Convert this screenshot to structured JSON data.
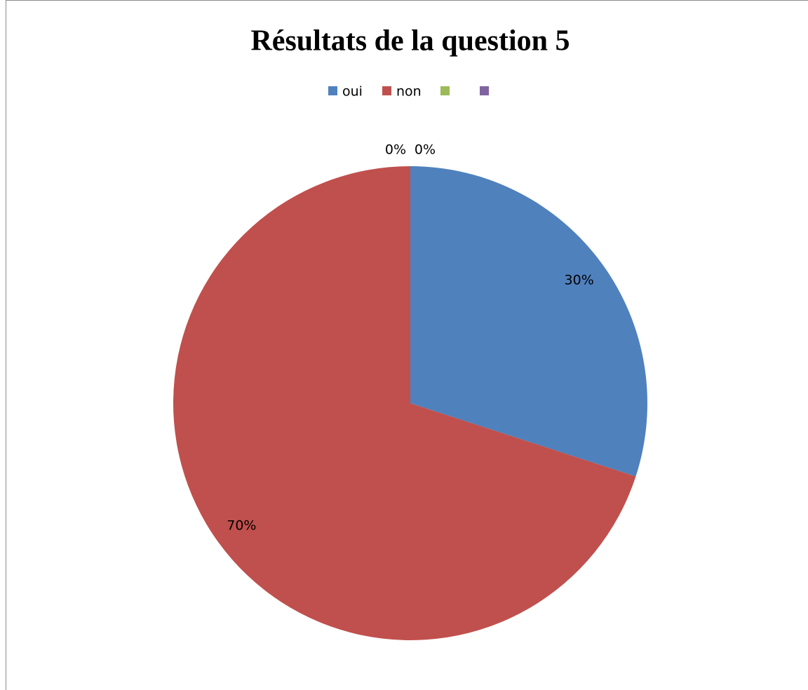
{
  "chart_data": {
    "type": "pie",
    "title": "Résultats de la question 5",
    "categories": [
      "oui",
      "non",
      null,
      null
    ],
    "values": [
      30,
      70,
      0,
      0
    ],
    "value_labels": [
      "30%",
      "70%",
      "0%",
      "0%"
    ],
    "colors": [
      "#4f81bd",
      "#c0504d",
      "#9bbb59",
      "#8064a2"
    ],
    "legend": "top"
  }
}
